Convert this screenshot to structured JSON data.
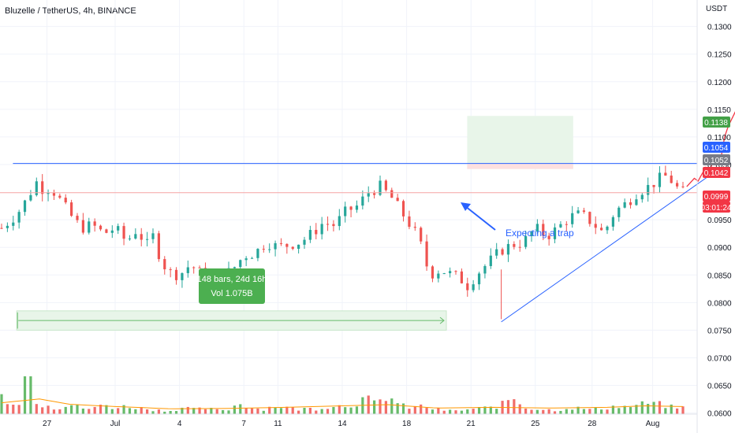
{
  "header": {
    "title": "Bluzelle / TetherUS, 4h, BINANCE",
    "currency": "USDT"
  },
  "chart_data": {
    "type": "candlestick",
    "symbol": "Bluzelle / TetherUS",
    "interval": "4h",
    "exchange": "BINANCE",
    "currency": "USDT",
    "ylim": [
      0.0598,
      0.1348
    ],
    "y_ticks": [
      "0.1300",
      "0.1250",
      "0.1200",
      "0.1150",
      "0.1100",
      "0.1050",
      "0.0950",
      "0.0900",
      "0.0850",
      "0.0800",
      "0.0750",
      "0.0700",
      "0.0650",
      "0.0600"
    ],
    "x_ticks": [
      "27",
      "Jul",
      "4",
      "7",
      "11",
      "14",
      "18",
      "21",
      "25",
      "28",
      "Aug"
    ],
    "close_path": [
      [
        0,
        0.0935
      ],
      [
        4,
        0.096
      ],
      [
        7,
        0.099
      ],
      [
        9,
        0.102
      ],
      [
        11,
        0.1005
      ],
      [
        13,
        0.1008
      ],
      [
        15,
        0.099
      ],
      [
        18,
        0.096
      ],
      [
        21,
        0.0935
      ],
      [
        24,
        0.094
      ],
      [
        27,
        0.0925
      ],
      [
        30,
        0.0935
      ],
      [
        33,
        0.091
      ],
      [
        36,
        0.0935
      ],
      [
        38,
        0.09
      ],
      [
        40,
        0.092
      ],
      [
        42,
        0.088
      ],
      [
        44,
        0.0855
      ],
      [
        47,
        0.085
      ],
      [
        50,
        0.087
      ],
      [
        52,
        0.0855
      ],
      [
        55,
        0.0845
      ],
      [
        58,
        0.0845
      ],
      [
        61,
        0.086
      ],
      [
        64,
        0.0885
      ],
      [
        67,
        0.089
      ],
      [
        70,
        0.091
      ],
      [
        73,
        0.09
      ],
      [
        76,
        0.0905
      ],
      [
        79,
        0.091
      ],
      [
        82,
        0.0925
      ],
      [
        85,
        0.0945
      ],
      [
        88,
        0.094
      ],
      [
        91,
        0.0965
      ],
      [
        94,
        0.0975
      ],
      [
        97,
        0.1
      ],
      [
        100,
        0.101
      ],
      [
        103,
        0.099
      ],
      [
        106,
        0.096
      ],
      [
        109,
        0.093
      ],
      [
        111,
        0.09
      ],
      [
        113,
        0.085
      ],
      [
        116,
        0.086
      ],
      [
        119,
        0.085
      ],
      [
        121,
        0.0845
      ],
      [
        123,
        0.083
      ],
      [
        126,
        0.0855
      ],
      [
        129,
        0.0875
      ],
      [
        132,
        0.0895
      ],
      [
        135,
        0.0905
      ],
      [
        138,
        0.091
      ],
      [
        141,
        0.0935
      ],
      [
        144,
        0.092
      ],
      [
        147,
        0.0935
      ],
      [
        150,
        0.0955
      ],
      [
        153,
        0.096
      ],
      [
        156,
        0.0945
      ],
      [
        159,
        0.0925
      ],
      [
        162,
        0.0965
      ],
      [
        165,
        0.098
      ],
      [
        168,
        0.1
      ],
      [
        171,
        0.101
      ],
      [
        174,
        0.1025
      ],
      [
        176,
        0.103
      ],
      [
        178,
        0.101
      ],
      [
        180,
        0.0999
      ]
    ],
    "volume_ylim": [
      0,
      100
    ],
    "volume": [
      [
        0,
        55
      ],
      [
        3,
        40
      ],
      [
        5,
        42
      ],
      [
        7,
        100
      ],
      [
        10,
        25
      ],
      [
        12,
        38
      ],
      [
        14,
        18
      ],
      [
        16,
        22
      ],
      [
        18,
        30
      ],
      [
        21,
        20
      ],
      [
        24,
        15
      ],
      [
        27,
        32
      ],
      [
        30,
        18
      ],
      [
        33,
        25
      ],
      [
        36,
        20
      ],
      [
        39,
        15
      ],
      [
        42,
        12
      ],
      [
        45,
        10
      ],
      [
        48,
        22
      ],
      [
        51,
        14
      ],
      [
        54,
        18
      ],
      [
        57,
        12
      ],
      [
        60,
        15
      ],
      [
        63,
        35
      ],
      [
        66,
        20
      ],
      [
        69,
        15
      ],
      [
        72,
        25
      ],
      [
        75,
        22
      ],
      [
        78,
        14
      ],
      [
        81,
        18
      ],
      [
        84,
        16
      ],
      [
        87,
        28
      ],
      [
        90,
        25
      ],
      [
        93,
        30
      ],
      [
        96,
        50
      ],
      [
        99,
        30
      ],
      [
        102,
        60
      ],
      [
        105,
        28
      ],
      [
        108,
        20
      ],
      [
        111,
        25
      ],
      [
        114,
        16
      ],
      [
        117,
        12
      ],
      [
        120,
        10
      ],
      [
        123,
        14
      ],
      [
        126,
        18
      ],
      [
        129,
        20
      ],
      [
        132,
        28
      ],
      [
        135,
        55
      ],
      [
        138,
        22
      ],
      [
        141,
        16
      ],
      [
        144,
        14
      ],
      [
        147,
        12
      ],
      [
        150,
        20
      ],
      [
        153,
        18
      ],
      [
        156,
        14
      ],
      [
        159,
        18
      ],
      [
        162,
        25
      ],
      [
        165,
        22
      ],
      [
        168,
        28
      ],
      [
        171,
        35
      ],
      [
        174,
        30
      ],
      [
        177,
        22
      ],
      [
        180,
        20
      ]
    ],
    "volume_ma": [
      [
        0,
        30
      ],
      [
        10,
        40
      ],
      [
        18,
        26
      ],
      [
        30,
        20
      ],
      [
        45,
        14
      ],
      [
        60,
        15
      ],
      [
        75,
        18
      ],
      [
        90,
        22
      ],
      [
        102,
        25
      ],
      [
        115,
        16
      ],
      [
        130,
        18
      ],
      [
        145,
        16
      ],
      [
        160,
        18
      ],
      [
        170,
        22
      ],
      [
        180,
        20
      ]
    ],
    "resistance_price": 0.1052,
    "current_price_line": 0.0999,
    "price_tags": [
      {
        "value": "0.1138",
        "color": "#43a047"
      },
      {
        "value": "0.1054",
        "color": "#2962ff"
      },
      {
        "value": "0.1052",
        "color": "#787b86"
      },
      {
        "value": "0.1042",
        "color": "#f23645"
      },
      {
        "value": "0.0999",
        "color": "#f23645"
      }
    ],
    "countdown": "03:01:24",
    "trendline": [
      [
        132,
        0.0765
      ],
      [
        187,
        0.103
      ]
    ],
    "date_range": {
      "line1": "148 bars, 24d 16h",
      "line2": "Vol 1.075B",
      "low": 0.075,
      "high": 0.0785
    },
    "long_position": {
      "entry": 0.1042,
      "target": 0.1138,
      "stop": 0.1052
    },
    "projection_path": [
      [
        181,
        0.101
      ],
      [
        183,
        0.1025
      ],
      [
        184,
        0.102
      ],
      [
        186,
        0.1045
      ],
      [
        187,
        0.104
      ],
      [
        188,
        0.1055
      ],
      [
        190,
        0.106
      ],
      [
        191,
        0.11
      ],
      [
        192,
        0.112
      ],
      [
        194,
        0.1148
      ]
    ],
    "annotation": "Expecting a trap",
    "colors": {
      "up": "#26a69a",
      "down": "#ef5350",
      "volume_up": "#4caf50",
      "volume_down": "#ef5350",
      "resistance": "#2962ff",
      "trendline": "#2962ff",
      "projection": "#f23645",
      "annotation": "#2962ff",
      "long_zone": "#e8f5e9",
      "stop_zone": "#fde0e0"
    }
  }
}
